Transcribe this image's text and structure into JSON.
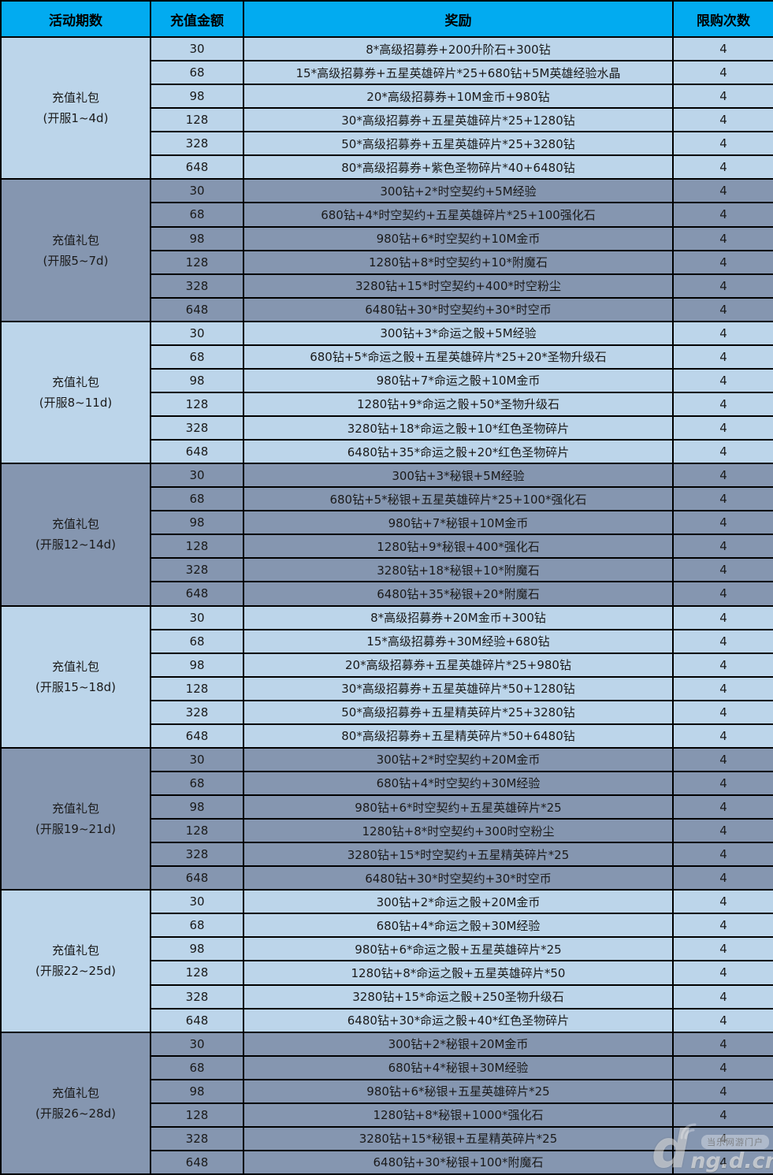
{
  "table": {
    "columns": [
      "活动期数",
      "充值金额",
      "奖励",
      "限购次数"
    ]
  },
  "groups": [
    {
      "title": "充值礼包",
      "subtitle": "(开服1~4d)",
      "rows": [
        {
          "amount": 30,
          "reward": "8*高级招募券+200升阶石+300钻",
          "limit": 4
        },
        {
          "amount": 68,
          "reward": "15*高级招募券+五星英雄碎片*25+680钻+5M英雄经验水晶",
          "limit": 4
        },
        {
          "amount": 98,
          "reward": "20*高级招募券+10M金币+980钻",
          "limit": 4
        },
        {
          "amount": 128,
          "reward": "30*高级招募券+五星英雄碎片*25+1280钻",
          "limit": 4
        },
        {
          "amount": 328,
          "reward": "50*高级招募券+五星英雄碎片*25+3280钻",
          "limit": 4
        },
        {
          "amount": 648,
          "reward": "80*高级招募券+紫色圣物碎片*40+6480钻",
          "limit": 4
        }
      ]
    },
    {
      "title": "充值礼包",
      "subtitle": "(开服5~7d)",
      "rows": [
        {
          "amount": 30,
          "reward": "300钻+2*时空契约+5M经验",
          "limit": 4
        },
        {
          "amount": 68,
          "reward": "680钻+4*时空契约+五星英雄碎片*25+100强化石",
          "limit": 4
        },
        {
          "amount": 98,
          "reward": "980钻+6*时空契约+10M金币",
          "limit": 4
        },
        {
          "amount": 128,
          "reward": "1280钻+8*时空契约+10*附魔石",
          "limit": 4
        },
        {
          "amount": 328,
          "reward": "3280钻+15*时空契约+400*时空粉尘",
          "limit": 4
        },
        {
          "amount": 648,
          "reward": "6480钻+30*时空契约+30*时空币",
          "limit": 4
        }
      ]
    },
    {
      "title": "充值礼包",
      "subtitle": "(开服8~11d)",
      "rows": [
        {
          "amount": 30,
          "reward": "300钻+3*命运之骰+5M经验",
          "limit": 4
        },
        {
          "amount": 68,
          "reward": "680钻+5*命运之骰+五星英雄碎片*25+20*圣物升级石",
          "limit": 4
        },
        {
          "amount": 98,
          "reward": "980钻+7*命运之骰+10M金币",
          "limit": 4
        },
        {
          "amount": 128,
          "reward": "1280钻+9*命运之骰+50*圣物升级石",
          "limit": 4
        },
        {
          "amount": 328,
          "reward": "3280钻+18*命运之骰+10*红色圣物碎片",
          "limit": 4
        },
        {
          "amount": 648,
          "reward": "6480钻+35*命运之骰+20*红色圣物碎片",
          "limit": 4
        }
      ]
    },
    {
      "title": "充值礼包",
      "subtitle": "(开服12~14d)",
      "rows": [
        {
          "amount": 30,
          "reward": "300钻+3*秘银+5M经验",
          "limit": 4
        },
        {
          "amount": 68,
          "reward": "680钻+5*秘银+五星英雄碎片*25+100*强化石",
          "limit": 4
        },
        {
          "amount": 98,
          "reward": "980钻+7*秘银+10M金币",
          "limit": 4
        },
        {
          "amount": 128,
          "reward": "1280钻+9*秘银+400*强化石",
          "limit": 4
        },
        {
          "amount": 328,
          "reward": "3280钻+18*秘银+10*附魔石",
          "limit": 4
        },
        {
          "amount": 648,
          "reward": "6480钻+35*秘银+20*附魔石",
          "limit": 4
        }
      ]
    },
    {
      "title": "充值礼包",
      "subtitle": "(开服15~18d)",
      "rows": [
        {
          "amount": 30,
          "reward": "8*高级招募券+20M金币+300钻",
          "limit": 4
        },
        {
          "amount": 68,
          "reward": "15*高级招募券+30M经验+680钻",
          "limit": 4
        },
        {
          "amount": 98,
          "reward": "20*高级招募券+五星英雄碎片*25+980钻",
          "limit": 4
        },
        {
          "amount": 128,
          "reward": "30*高级招募券+五星英雄碎片*50+1280钻",
          "limit": 4
        },
        {
          "amount": 328,
          "reward": "50*高级招募券+五星精英碎片*25+3280钻",
          "limit": 4
        },
        {
          "amount": 648,
          "reward": "80*高级招募券+五星精英碎片*50+6480钻",
          "limit": 4
        }
      ]
    },
    {
      "title": "充值礼包",
      "subtitle": "(开服19~21d)",
      "rows": [
        {
          "amount": 30,
          "reward": "300钻+2*时空契约+20M金币",
          "limit": 4
        },
        {
          "amount": 68,
          "reward": "680钻+4*时空契约+30M经验",
          "limit": 4
        },
        {
          "amount": 98,
          "reward": "980钻+6*时空契约+五星英雄碎片*25",
          "limit": 4
        },
        {
          "amount": 128,
          "reward": "1280钻+8*时空契约+300时空粉尘",
          "limit": 4
        },
        {
          "amount": 328,
          "reward": "3280钻+15*时空契约+五星精英碎片*25",
          "limit": 4
        },
        {
          "amount": 648,
          "reward": "6480钻+30*时空契约+30*时空币",
          "limit": 4
        }
      ]
    },
    {
      "title": "充值礼包",
      "subtitle": "(开服22~25d)",
      "rows": [
        {
          "amount": 30,
          "reward": "300钻+2*命运之骰+20M金币",
          "limit": 4
        },
        {
          "amount": 68,
          "reward": "680钻+4*命运之骰+30M经验",
          "limit": 4
        },
        {
          "amount": 98,
          "reward": "980钻+6*命运之骰+五星英雄碎片*25",
          "limit": 4
        },
        {
          "amount": 128,
          "reward": "1280钻+8*命运之骰+五星英雄碎片*50",
          "limit": 4
        },
        {
          "amount": 328,
          "reward": "3280钻+15*命运之骰+250圣物升级石",
          "limit": 4
        },
        {
          "amount": 648,
          "reward": "6480钻+30*命运之骰+40*红色圣物碎片",
          "limit": 4
        }
      ]
    },
    {
      "title": "充值礼包",
      "subtitle": "(开服26~28d)",
      "rows": [
        {
          "amount": 30,
          "reward": "300钻+2*秘银+20M金币",
          "limit": 4
        },
        {
          "amount": 68,
          "reward": "680钻+4*秘银+30M经验",
          "limit": 4
        },
        {
          "amount": 98,
          "reward": "980钻+6*秘银+五星英雄碎片*25",
          "limit": 4
        },
        {
          "amount": 128,
          "reward": "1280钻+8*秘银+1000*强化石",
          "limit": 4
        },
        {
          "amount": 328,
          "reward": "3280钻+15*秘银+五星精英碎片*25",
          "limit": 4
        },
        {
          "amount": 648,
          "reward": "6480钻+30*秘银+100*附魔石",
          "limit": 4
        }
      ]
    }
  ],
  "watermark": {
    "logo": "d",
    "badge": "当乐网游门户",
    "site": "ng.d.cn"
  },
  "colors": {
    "header_bg": "#02ABF0",
    "group_light_bg": "#BCD5EA",
    "group_dark_bg": "#8596B0",
    "border": "#000000",
    "text": "#1A1A1A"
  }
}
